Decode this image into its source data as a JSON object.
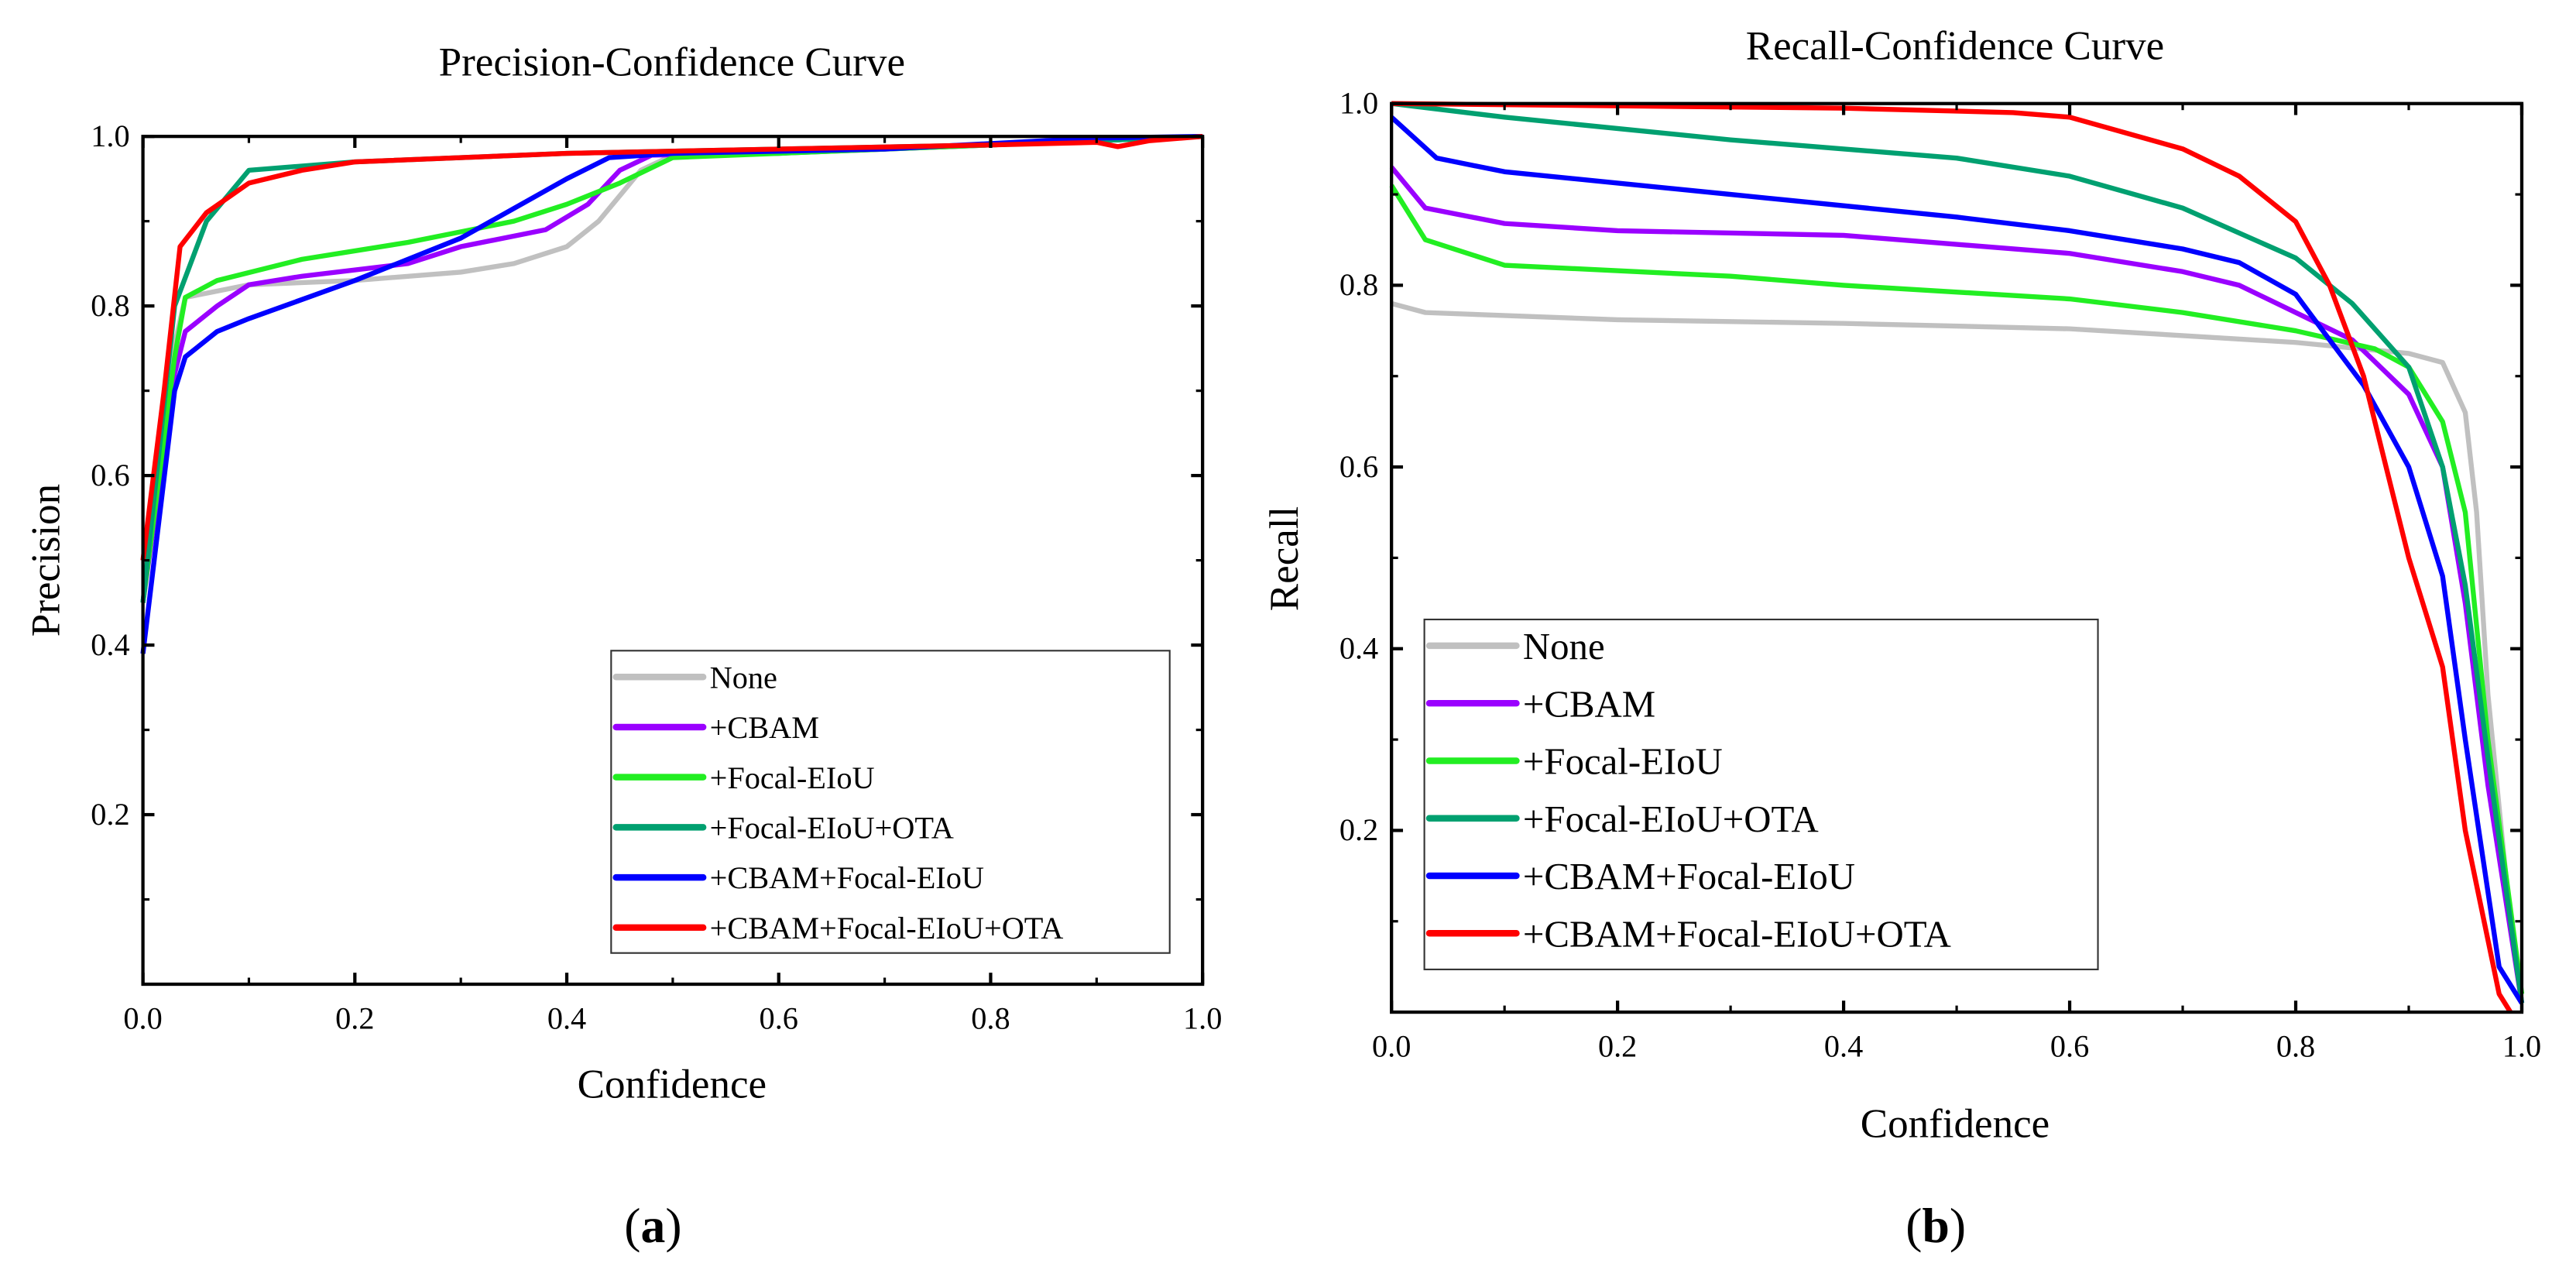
{
  "chart_data": [
    {
      "type": "line",
      "panel_label": "a",
      "title": "Precision-Confidence Curve",
      "xlabel": "Confidence",
      "ylabel": "Precision",
      "xlim": [
        0,
        1
      ],
      "ylim": [
        0,
        1
      ],
      "xticks": [
        "0.0",
        "0.2",
        "0.4",
        "0.6",
        "0.8",
        "1.0"
      ],
      "yticks": [
        "0.2",
        "0.4",
        "0.6",
        "0.8",
        "1.0"
      ],
      "grid": false,
      "legend_position": "bottom-right",
      "series": [
        {
          "name": "None",
          "color": "#c0c0c0",
          "points": [
            [
              0,
              0.45
            ],
            [
              0.02,
              0.7
            ],
            [
              0.04,
              0.81
            ],
            [
              0.1,
              0.825
            ],
            [
              0.2,
              0.83
            ],
            [
              0.3,
              0.84
            ],
            [
              0.35,
              0.85
            ],
            [
              0.4,
              0.87
            ],
            [
              0.43,
              0.9
            ],
            [
              0.47,
              0.96
            ],
            [
              0.5,
              0.978
            ],
            [
              0.7,
              0.985
            ],
            [
              0.9,
              0.995
            ],
            [
              1,
              1
            ]
          ]
        },
        {
          "name": "+CBAM",
          "color": "#9a00ff",
          "points": [
            [
              0,
              0.45
            ],
            [
              0.03,
              0.72
            ],
            [
              0.04,
              0.77
            ],
            [
              0.07,
              0.8
            ],
            [
              0.1,
              0.825
            ],
            [
              0.15,
              0.835
            ],
            [
              0.25,
              0.85
            ],
            [
              0.3,
              0.87
            ],
            [
              0.38,
              0.89
            ],
            [
              0.42,
              0.92
            ],
            [
              0.45,
              0.96
            ],
            [
              0.48,
              0.978
            ],
            [
              0.6,
              0.98
            ],
            [
              0.8,
              0.99
            ],
            [
              1,
              1
            ]
          ]
        },
        {
          "name": "+Focal-EIoU",
          "color": "#22ee22",
          "points": [
            [
              0,
              0.45
            ],
            [
              0.03,
              0.74
            ],
            [
              0.04,
              0.81
            ],
            [
              0.07,
              0.83
            ],
            [
              0.15,
              0.855
            ],
            [
              0.25,
              0.875
            ],
            [
              0.35,
              0.9
            ],
            [
              0.4,
              0.92
            ],
            [
              0.45,
              0.945
            ],
            [
              0.5,
              0.975
            ],
            [
              0.6,
              0.98
            ],
            [
              0.8,
              0.99
            ],
            [
              1,
              1
            ]
          ]
        },
        {
          "name": "+Focal-EIoU+OTA",
          "color": "#00a070",
          "points": [
            [
              0,
              0.45
            ],
            [
              0.03,
              0.8
            ],
            [
              0.06,
              0.9
            ],
            [
              0.1,
              0.96
            ],
            [
              0.2,
              0.97
            ],
            [
              0.4,
              0.98
            ],
            [
              0.6,
              0.985
            ],
            [
              0.8,
              0.99
            ],
            [
              1,
              1
            ]
          ]
        },
        {
          "name": "+CBAM+Focal-EIoU",
          "color": "#0000ff",
          "points": [
            [
              0,
              0.39
            ],
            [
              0.03,
              0.7
            ],
            [
              0.04,
              0.74
            ],
            [
              0.07,
              0.77
            ],
            [
              0.1,
              0.785
            ],
            [
              0.2,
              0.83
            ],
            [
              0.3,
              0.88
            ],
            [
              0.4,
              0.95
            ],
            [
              0.44,
              0.975
            ],
            [
              0.5,
              0.98
            ],
            [
              0.7,
              0.985
            ],
            [
              0.9,
              0.998
            ],
            [
              1,
              1
            ]
          ]
        },
        {
          "name": "+CBAM+Focal-EIoU+OTA",
          "color": "#ff0000",
          "points": [
            [
              0,
              0.5
            ],
            [
              0.02,
              0.7
            ],
            [
              0.035,
              0.87
            ],
            [
              0.06,
              0.91
            ],
            [
              0.1,
              0.945
            ],
            [
              0.15,
              0.96
            ],
            [
              0.2,
              0.97
            ],
            [
              0.4,
              0.98
            ],
            [
              0.6,
              0.985
            ],
            [
              0.8,
              0.99
            ],
            [
              0.9,
              0.993
            ],
            [
              0.92,
              0.988
            ],
            [
              0.95,
              0.995
            ],
            [
              1,
              1
            ]
          ]
        }
      ]
    },
    {
      "type": "line",
      "panel_label": "b",
      "title": "Recall-Confidence Curve",
      "xlabel": "Confidence",
      "ylabel": "Recall",
      "xlim": [
        0,
        1
      ],
      "ylim": [
        0,
        1
      ],
      "xticks": [
        "0.0",
        "0.2",
        "0.4",
        "0.6",
        "0.8",
        "1.0"
      ],
      "yticks": [
        "0.2",
        "0.4",
        "0.6",
        "0.8",
        "1.0"
      ],
      "grid": false,
      "legend_position": "bottom-left",
      "series": [
        {
          "name": "None",
          "color": "#c0c0c0",
          "points": [
            [
              0,
              0.78
            ],
            [
              0.03,
              0.77
            ],
            [
              0.2,
              0.762
            ],
            [
              0.4,
              0.758
            ],
            [
              0.6,
              0.752
            ],
            [
              0.8,
              0.737
            ],
            [
              0.9,
              0.725
            ],
            [
              0.93,
              0.715
            ],
            [
              0.95,
              0.66
            ],
            [
              0.96,
              0.55
            ],
            [
              0.97,
              0.35
            ],
            [
              0.99,
              0.1
            ],
            [
              1,
              0.01
            ]
          ]
        },
        {
          "name": "+CBAM",
          "color": "#9a00ff",
          "points": [
            [
              0,
              0.93
            ],
            [
              0.03,
              0.885
            ],
            [
              0.1,
              0.868
            ],
            [
              0.2,
              0.86
            ],
            [
              0.4,
              0.855
            ],
            [
              0.6,
              0.835
            ],
            [
              0.7,
              0.815
            ],
            [
              0.75,
              0.8
            ],
            [
              0.8,
              0.77
            ],
            [
              0.85,
              0.74
            ],
            [
              0.9,
              0.68
            ],
            [
              0.93,
              0.6
            ],
            [
              0.95,
              0.45
            ],
            [
              0.97,
              0.25
            ],
            [
              1,
              0.01
            ]
          ]
        },
        {
          "name": "+Focal-EIoU",
          "color": "#22ee22",
          "points": [
            [
              0,
              0.91
            ],
            [
              0.03,
              0.85
            ],
            [
              0.1,
              0.822
            ],
            [
              0.3,
              0.81
            ],
            [
              0.4,
              0.8
            ],
            [
              0.6,
              0.785
            ],
            [
              0.7,
              0.77
            ],
            [
              0.8,
              0.75
            ],
            [
              0.87,
              0.73
            ],
            [
              0.9,
              0.71
            ],
            [
              0.93,
              0.65
            ],
            [
              0.95,
              0.55
            ],
            [
              0.97,
              0.3
            ],
            [
              1,
              0.02
            ]
          ]
        },
        {
          "name": "+Focal-EIoU+OTA",
          "color": "#00a070",
          "points": [
            [
              0,
              1.0
            ],
            [
              0.1,
              0.985
            ],
            [
              0.3,
              0.96
            ],
            [
              0.5,
              0.94
            ],
            [
              0.6,
              0.92
            ],
            [
              0.7,
              0.885
            ],
            [
              0.8,
              0.83
            ],
            [
              0.85,
              0.78
            ],
            [
              0.9,
              0.71
            ],
            [
              0.93,
              0.6
            ],
            [
              0.95,
              0.47
            ],
            [
              0.97,
              0.28
            ],
            [
              1,
              0.01
            ]
          ]
        },
        {
          "name": "+CBAM+Focal-EIoU",
          "color": "#0000ff",
          "points": [
            [
              0,
              0.985
            ],
            [
              0.04,
              0.94
            ],
            [
              0.1,
              0.925
            ],
            [
              0.3,
              0.9
            ],
            [
              0.5,
              0.875
            ],
            [
              0.6,
              0.86
            ],
            [
              0.7,
              0.84
            ],
            [
              0.75,
              0.825
            ],
            [
              0.8,
              0.79
            ],
            [
              0.83,
              0.74
            ],
            [
              0.86,
              0.69
            ],
            [
              0.9,
              0.6
            ],
            [
              0.93,
              0.48
            ],
            [
              0.95,
              0.3
            ],
            [
              0.98,
              0.05
            ],
            [
              1,
              0.01
            ]
          ]
        },
        {
          "name": "+CBAM+Focal-EIoU+OTA",
          "color": "#ff0000",
          "points": [
            [
              0,
              1.0
            ],
            [
              0.4,
              0.995
            ],
            [
              0.55,
              0.99
            ],
            [
              0.6,
              0.985
            ],
            [
              0.7,
              0.95
            ],
            [
              0.75,
              0.92
            ],
            [
              0.8,
              0.87
            ],
            [
              0.83,
              0.8
            ],
            [
              0.86,
              0.7
            ],
            [
              0.88,
              0.6
            ],
            [
              0.9,
              0.5
            ],
            [
              0.93,
              0.38
            ],
            [
              0.95,
              0.2
            ],
            [
              0.98,
              0.02
            ],
            [
              0.99,
              0
            ]
          ]
        }
      ]
    }
  ]
}
